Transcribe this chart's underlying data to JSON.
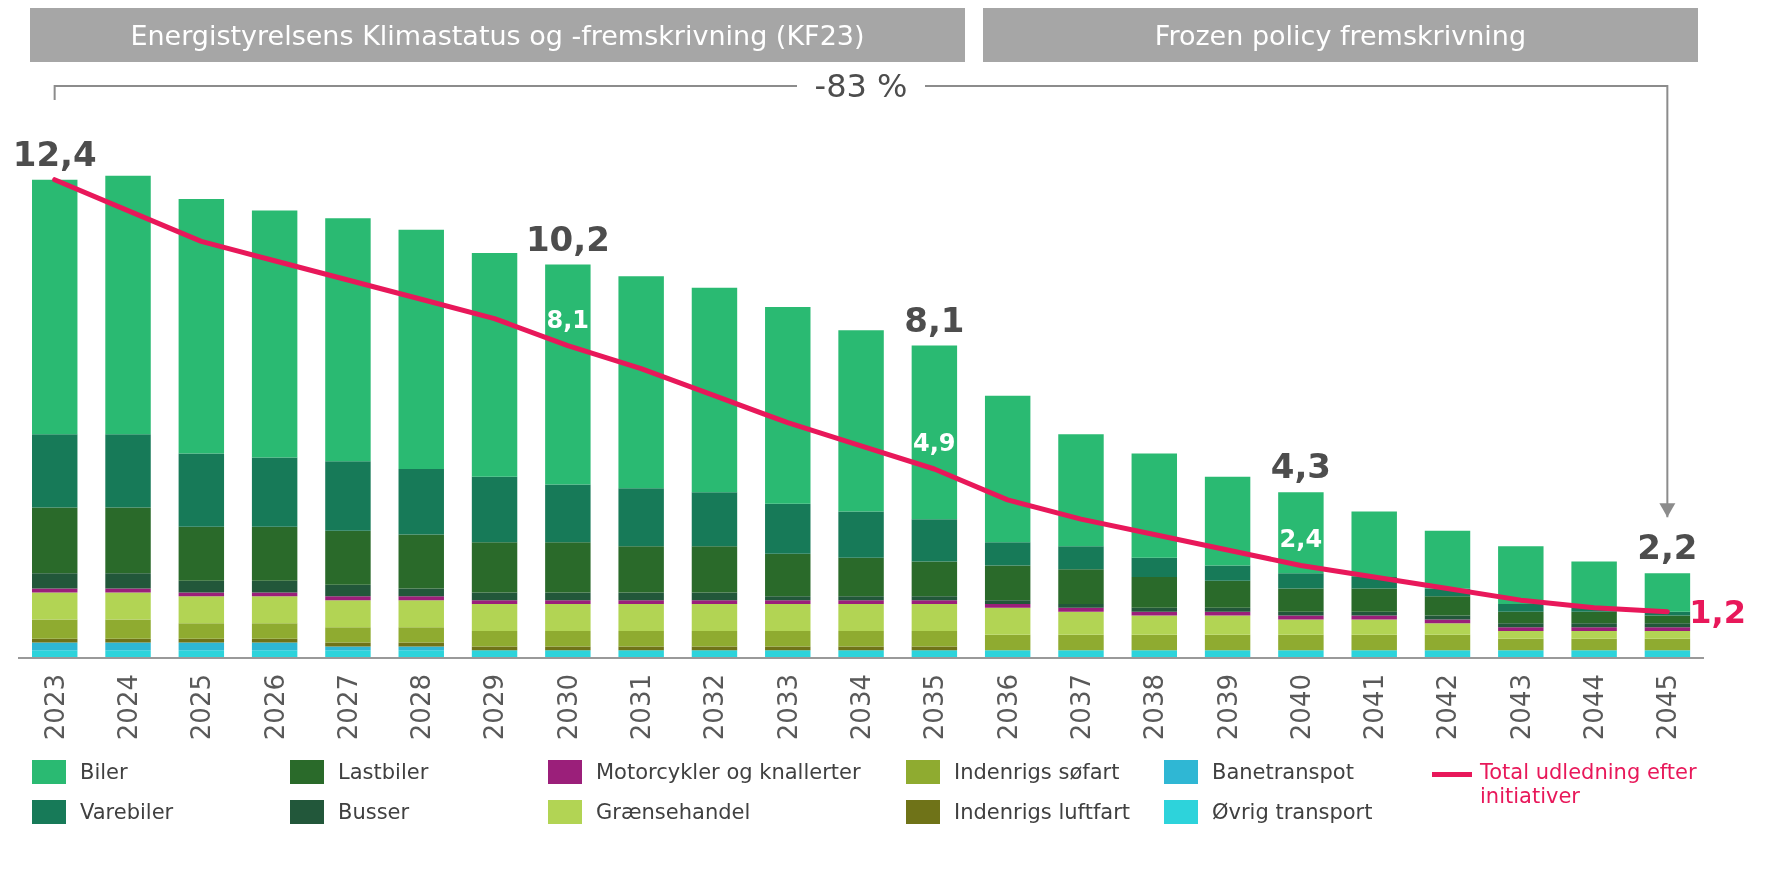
{
  "chart_data": {
    "type": "bar",
    "stacked": true,
    "legend": "bottom",
    "categories": [
      "2023",
      "2024",
      "2025",
      "2026",
      "2027",
      "2028",
      "2029",
      "2030",
      "2031",
      "2032",
      "2033",
      "2034",
      "2035",
      "2036",
      "2037",
      "2038",
      "2039",
      "2040",
      "2041",
      "2042",
      "2043",
      "2044",
      "2045"
    ],
    "series": [
      {
        "name": "Øvrig transport",
        "color": "#2dd3db",
        "values": [
          0.2,
          0.2,
          0.2,
          0.2,
          0.2,
          0.2,
          0.2,
          0.2,
          0.2,
          0.2,
          0.2,
          0.2,
          0.2,
          0.2,
          0.2,
          0.2,
          0.2,
          0.2,
          0.2,
          0.2,
          0.2,
          0.2,
          0.2
        ]
      },
      {
        "name": "Banetranspot",
        "color": "#2fb7d4",
        "values": [
          0.2,
          0.2,
          0.2,
          0.2,
          0.1,
          0.1,
          0,
          0,
          0,
          0,
          0,
          0,
          0,
          0,
          0,
          0,
          0,
          0,
          0,
          0,
          0,
          0,
          0
        ]
      },
      {
        "name": "Indenrigs luftfart",
        "color": "#6f7318",
        "values": [
          0.1,
          0.1,
          0.1,
          0.1,
          0.1,
          0.1,
          0.1,
          0.1,
          0.1,
          0.1,
          0.1,
          0.1,
          0.1,
          0,
          0,
          0,
          0,
          0,
          0,
          0,
          0,
          0,
          0
        ]
      },
      {
        "name": "Indenrigs søfart",
        "color": "#8fab30",
        "values": [
          0.5,
          0.5,
          0.4,
          0.4,
          0.4,
          0.4,
          0.4,
          0.4,
          0.4,
          0.4,
          0.4,
          0.4,
          0.4,
          0.4,
          0.4,
          0.4,
          0.4,
          0.4,
          0.4,
          0.4,
          0.3,
          0.3,
          0.3
        ]
      },
      {
        "name": "Grænsehandel",
        "color": "#b2d454",
        "values": [
          0.7,
          0.7,
          0.7,
          0.7,
          0.7,
          0.7,
          0.7,
          0.7,
          0.7,
          0.7,
          0.7,
          0.7,
          0.7,
          0.7,
          0.6,
          0.5,
          0.5,
          0.4,
          0.4,
          0.3,
          0.2,
          0.2,
          0.2
        ]
      },
      {
        "name": "Motorcykler og knallerter",
        "color": "#9b1f7a",
        "values": [
          0.1,
          0.1,
          0.1,
          0.1,
          0.1,
          0.1,
          0.1,
          0.1,
          0.1,
          0.1,
          0.1,
          0.1,
          0.1,
          0.1,
          0.1,
          0.1,
          0.1,
          0.1,
          0.1,
          0.1,
          0.1,
          0.1,
          0.1
        ]
      },
      {
        "name": "Busser",
        "color": "#22573a",
        "values": [
          0.4,
          0.4,
          0.3,
          0.3,
          0.3,
          0.2,
          0.2,
          0.2,
          0.2,
          0.2,
          0.1,
          0.1,
          0.1,
          0.1,
          0.1,
          0.1,
          0.1,
          0.1,
          0.1,
          0.1,
          0.1,
          0.1,
          0.1
        ]
      },
      {
        "name": "Lastbiler",
        "color": "#2a6a2a",
        "values": [
          1.7,
          1.7,
          1.4,
          1.4,
          1.4,
          1.4,
          1.3,
          1.3,
          1.2,
          1.2,
          1.1,
          1.0,
          0.9,
          0.9,
          0.9,
          0.8,
          0.7,
          0.6,
          0.6,
          0.5,
          0.3,
          0.3,
          0.2
        ]
      },
      {
        "name": "Varebiler",
        "color": "#177a58",
        "values": [
          1.9,
          1.9,
          1.9,
          1.8,
          1.8,
          1.7,
          1.7,
          1.5,
          1.5,
          1.4,
          1.3,
          1.2,
          1.1,
          0.6,
          0.6,
          0.5,
          0.4,
          0.4,
          0.3,
          0.2,
          0.2,
          0.1,
          0.1
        ]
      },
      {
        "name": "Biler",
        "color": "#2aba72",
        "values": [
          6.6,
          6.7,
          6.6,
          6.4,
          6.3,
          6.2,
          5.8,
          5.7,
          5.5,
          5.3,
          5.1,
          4.7,
          4.5,
          3.8,
          2.9,
          2.7,
          2.3,
          2.1,
          1.7,
          1.5,
          1.5,
          1.2,
          1.0
        ]
      },
      {
        "name": "Total udledning efter initiativer",
        "type": "line",
        "line_style": "solid",
        "color": "#e8185a",
        "values": [
          12.4,
          11.6,
          10.8,
          10.3,
          9.8,
          9.3,
          8.8,
          8.1,
          7.5,
          6.8,
          6.1,
          5.5,
          4.9,
          4.1,
          3.6,
          3.2,
          2.8,
          2.4,
          2.1,
          1.8,
          1.5,
          1.3,
          1.2
        ],
        "value_labels": [
          null,
          null,
          null,
          null,
          null,
          null,
          null,
          "8,1",
          null,
          null,
          null,
          null,
          "4,9",
          null,
          null,
          null,
          null,
          "2,4",
          null,
          null,
          null,
          null,
          "1,2"
        ]
      }
    ],
    "totals": [
      "12,4",
      null,
      null,
      null,
      null,
      null,
      null,
      "10,2",
      null,
      null,
      null,
      null,
      "8,1",
      null,
      null,
      null,
      null,
      "4,3",
      null,
      null,
      null,
      null,
      "2,2"
    ],
    "bands": [
      {
        "axis": "x",
        "from": "2023",
        "to": "2035",
        "label": "Energistyrelsens Klimastatus og -fremskrivning (KF23)",
        "color": "#a6a6a6"
      },
      {
        "axis": "x",
        "from": "2036",
        "to": "2045",
        "label": "Frozen policy fremskrivning",
        "color": "#a6a6a6"
      }
    ],
    "annotations": [
      "-83 %"
    ]
  }
}
